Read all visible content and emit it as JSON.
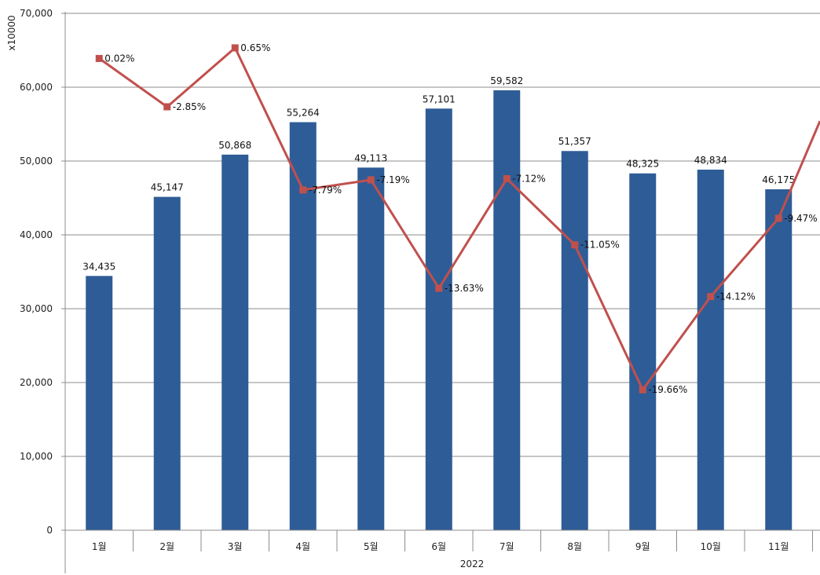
{
  "chart_data": {
    "type": "bar+line",
    "ylabel": "x10000",
    "xgroup_label": "2022",
    "categories": [
      "1월",
      "2월",
      "3월",
      "4월",
      "5월",
      "6월",
      "7월",
      "8월",
      "9월",
      "10월",
      "11월"
    ],
    "ylim": [
      0,
      70000
    ],
    "yticks": [
      "0",
      "10,000",
      "20,000",
      "30,000",
      "40,000",
      "50,000",
      "60,000",
      "70,000"
    ],
    "grid": true,
    "series": [
      {
        "kind": "bar",
        "color": "#2E5C96",
        "values": [
          34435,
          45147,
          50868,
          55264,
          49113,
          57101,
          59582,
          51357,
          48325,
          48834,
          46175
        ],
        "labels": [
          "34,435",
          "45,147",
          "50,868",
          "55,264",
          "49,113",
          "57,101",
          "59,582",
          "51,357",
          "48,325",
          "48,834",
          "46,175"
        ]
      },
      {
        "kind": "line",
        "color": "#C0504D",
        "values": [
          0.02,
          -2.85,
          0.65,
          -7.79,
          -7.19,
          -13.63,
          -7.12,
          -11.05,
          -19.66,
          -14.12,
          -9.47
        ],
        "labels": [
          "0.02%",
          "-2.85%",
          "0.65%",
          "-7.79%",
          "-7.19%",
          "-13.63%",
          "-7.12%",
          "-11.05%",
          "-19.66%",
          "-14.12%",
          "-9.47%"
        ],
        "secondary_axis_range": [
          -28.0,
          2.7
        ],
        "continues_to_next": 0.0
      }
    ]
  }
}
